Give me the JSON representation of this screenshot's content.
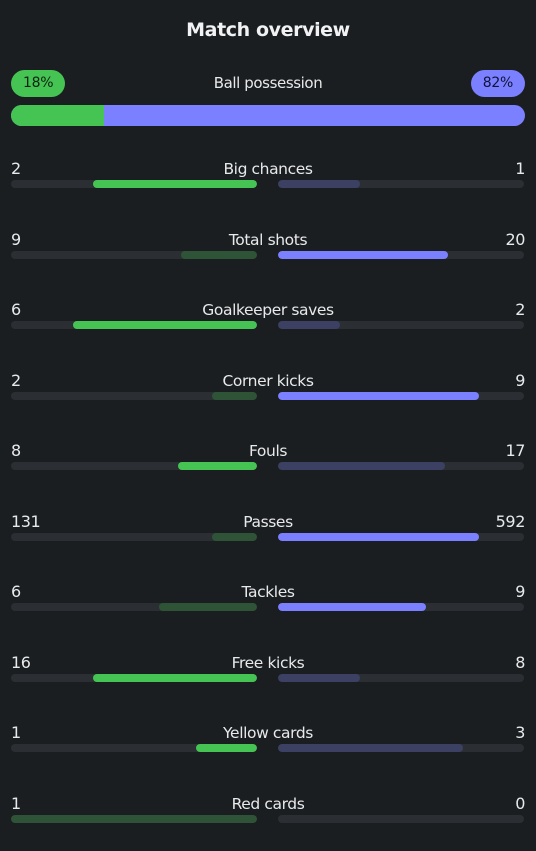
{
  "title": "Match overview",
  "colors": {
    "background": "#1b1e21",
    "home_strong": "#45c453",
    "home_weak": "#2f5337",
    "away_strong": "#7a80ff",
    "away_weak": "#3c4063",
    "track": "#2b2f33"
  },
  "possession": {
    "label": "Ball possession",
    "home_text": "18%",
    "away_text": "82%",
    "home_fraction": 0.18
  },
  "stats": [
    {
      "label": "Big chances",
      "home": "2",
      "away": "1",
      "home_fraction": 0.667,
      "away_fraction": 0.333,
      "leader": "home"
    },
    {
      "label": "Total shots",
      "home": "9",
      "away": "20",
      "home_fraction": 0.31,
      "away_fraction": 0.69,
      "leader": "away"
    },
    {
      "label": "Goalkeeper saves",
      "home": "6",
      "away": "2",
      "home_fraction": 0.75,
      "away_fraction": 0.25,
      "leader": "home"
    },
    {
      "label": "Corner kicks",
      "home": "2",
      "away": "9",
      "home_fraction": 0.182,
      "away_fraction": 0.818,
      "leader": "away"
    },
    {
      "label": "Fouls",
      "home": "8",
      "away": "17",
      "home_fraction": 0.32,
      "away_fraction": 0.68,
      "leader": "home"
    },
    {
      "label": "Passes",
      "home": "131",
      "away": "592",
      "home_fraction": 0.181,
      "away_fraction": 0.819,
      "leader": "away"
    },
    {
      "label": "Tackles",
      "home": "6",
      "away": "9",
      "home_fraction": 0.4,
      "away_fraction": 0.6,
      "leader": "away"
    },
    {
      "label": "Free kicks",
      "home": "16",
      "away": "8",
      "home_fraction": 0.667,
      "away_fraction": 0.333,
      "leader": "home"
    },
    {
      "label": "Yellow cards",
      "home": "1",
      "away": "3",
      "home_fraction": 0.25,
      "away_fraction": 0.75,
      "leader": "home"
    },
    {
      "label": "Red cards",
      "home": "1",
      "away": "0",
      "home_fraction": 1.0,
      "away_fraction": 0.0,
      "leader": "none"
    }
  ]
}
